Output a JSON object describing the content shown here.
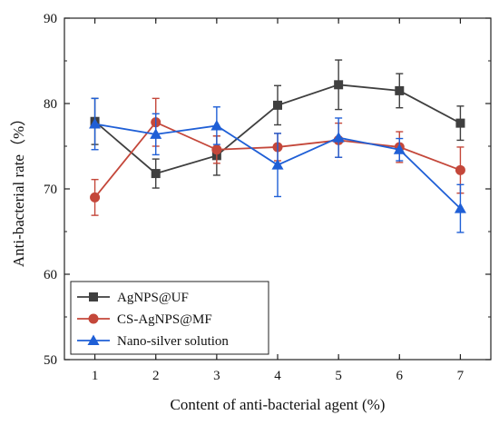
{
  "chart_data": {
    "type": "line",
    "title": "",
    "xlabel": "Content of anti-bacterial agent (%)",
    "ylabel": "Anti-bacterial rate（%）",
    "x": [
      1,
      2,
      3,
      4,
      5,
      6,
      7
    ],
    "xlim": [
      0.5,
      7.5
    ],
    "ylim": [
      50,
      90
    ],
    "xticks": [
      "1",
      "2",
      "3",
      "4",
      "5",
      "6",
      "7"
    ],
    "yticks": [
      "50",
      "60",
      "70",
      "80",
      "90"
    ],
    "grid": false,
    "legend_position": "bottom-left",
    "series": [
      {
        "name": "AgNPS@UF",
        "color": "#3f3f3f",
        "marker": "square",
        "values": [
          77.9,
          71.8,
          73.9,
          79.8,
          82.2,
          81.5,
          77.7
        ],
        "errors": [
          2.7,
          1.7,
          2.3,
          2.3,
          2.9,
          2.0,
          2.0
        ]
      },
      {
        "name": "CS-AgNPS@MF",
        "color": "#c4473a",
        "marker": "circle",
        "values": [
          69.0,
          77.8,
          74.6,
          74.9,
          75.7,
          74.9,
          72.2
        ],
        "errors": [
          2.1,
          2.8,
          1.6,
          1.6,
          2.0,
          1.8,
          2.7
        ]
      },
      {
        "name": "Nano-silver solution",
        "color": "#1f5fd6",
        "marker": "triangle",
        "values": [
          77.6,
          76.4,
          77.4,
          72.8,
          76.0,
          74.6,
          67.7
        ],
        "errors": [
          3.0,
          2.4,
          2.2,
          3.7,
          2.3,
          1.3,
          2.8
        ]
      }
    ]
  }
}
